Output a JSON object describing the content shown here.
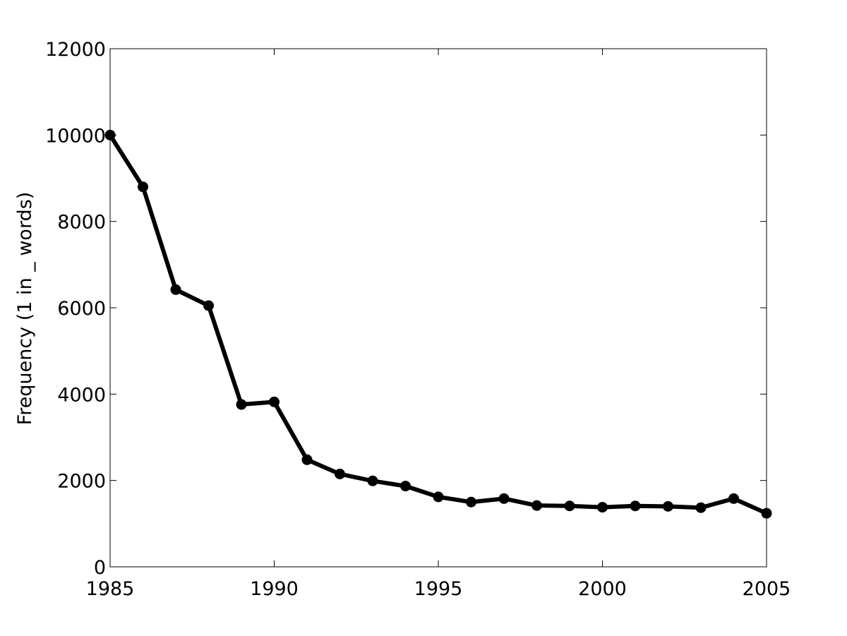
{
  "chart_data": {
    "type": "line",
    "title": "",
    "xlabel": "",
    "ylabel": "Frequency (1 in _ words)",
    "xlim": [
      1985,
      2005
    ],
    "ylim": [
      0,
      12000
    ],
    "x_ticks": [
      1985,
      1990,
      1995,
      2000,
      2005
    ],
    "y_ticks": [
      0,
      2000,
      4000,
      6000,
      8000,
      10000,
      12000
    ],
    "grid": false,
    "legend": "none",
    "line_color": "#000000",
    "marker": "filled-circle",
    "series": [
      {
        "x": [
          1985,
          1986,
          1987,
          1988,
          1989,
          1990,
          1991,
          1992,
          1993,
          1994,
          1995,
          1996,
          1997,
          1998,
          1999,
          2000,
          2001,
          2002,
          2003,
          2004,
          2005
        ],
        "values": [
          10000,
          8800,
          6420,
          6050,
          3760,
          3820,
          2480,
          2150,
          1990,
          1870,
          1620,
          1500,
          1580,
          1420,
          1410,
          1380,
          1410,
          1400,
          1370,
          1580,
          1240
        ]
      }
    ]
  }
}
